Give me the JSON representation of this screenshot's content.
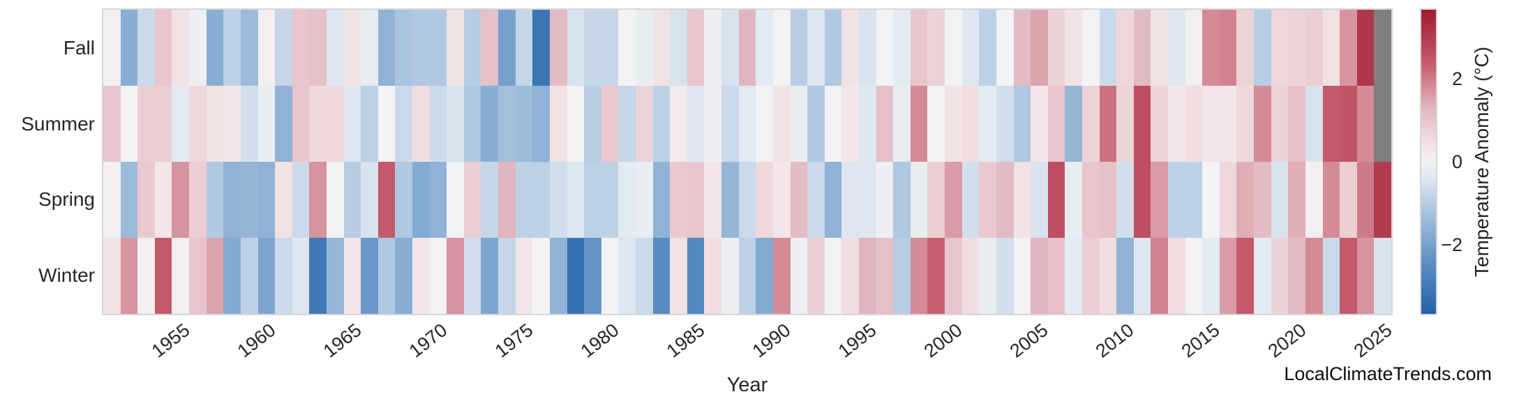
{
  "figure": {
    "background": "#ffffff",
    "text_color": "#262626"
  },
  "xaxis": {
    "label": "Year"
  },
  "watermark": {
    "text": "LocalClimateTrends.com"
  },
  "chart_data": {
    "type": "heatmap",
    "title": "",
    "xlabel": "Year",
    "ylabel": "",
    "rows": [
      "Fall",
      "Summer",
      "Spring",
      "Winter"
    ],
    "years": [
      1951,
      1952,
      1953,
      1954,
      1955,
      1956,
      1957,
      1958,
      1959,
      1960,
      1961,
      1962,
      1963,
      1964,
      1965,
      1966,
      1967,
      1968,
      1969,
      1970,
      1971,
      1972,
      1973,
      1974,
      1975,
      1976,
      1977,
      1978,
      1979,
      1980,
      1981,
      1982,
      1983,
      1984,
      1985,
      1986,
      1987,
      1988,
      1989,
      1990,
      1991,
      1992,
      1993,
      1994,
      1995,
      1996,
      1997,
      1998,
      1999,
      2000,
      2001,
      2002,
      2003,
      2004,
      2005,
      2006,
      2007,
      2008,
      2009,
      2010,
      2011,
      2012,
      2013,
      2014,
      2015,
      2016,
      2017,
      2018,
      2019,
      2020,
      2021,
      2022,
      2023,
      2024,
      2025
    ],
    "x_tick_labels": [
      "1955",
      "1960",
      "1965",
      "1970",
      "1975",
      "1980",
      "1985",
      "1990",
      "1995",
      "2000",
      "2005",
      "2010",
      "2015",
      "2020",
      "2025"
    ],
    "series": [
      {
        "name": "Fall",
        "values": [
          0.1,
          -1.7,
          -0.7,
          1.0,
          0.4,
          -0.1,
          -1.7,
          -0.9,
          -1.4,
          0.1,
          -0.8,
          1.0,
          1.1,
          -0.4,
          0.4,
          -0.2,
          -1.6,
          -1.2,
          -1.1,
          -1.1,
          0.4,
          -1.0,
          1.1,
          -2.0,
          -0.8,
          -3.1,
          1.2,
          -0.5,
          -0.8,
          -0.8,
          0.0,
          -0.2,
          0.4,
          -0.5,
          1.0,
          -0.1,
          -0.5,
          1.3,
          -0.3,
          0.0,
          -1.0,
          -0.4,
          -1.1,
          0.4,
          -0.5,
          0.0,
          -0.3,
          1.0,
          0.7,
          0.0,
          -0.4,
          -0.9,
          0.0,
          1.2,
          1.5,
          0.7,
          0.4,
          0.0,
          -0.7,
          0.6,
          1.2,
          0.4,
          -0.4,
          0.1,
          1.8,
          1.9,
          0.7,
          -1.0,
          0.6,
          0.7,
          0.8,
          0.4,
          1.7,
          3.1,
          null
        ]
      },
      {
        "name": "Summer",
        "values": [
          1.0,
          0.0,
          0.8,
          0.8,
          -0.3,
          0.6,
          0.4,
          0.3,
          -0.6,
          -0.2,
          -1.6,
          1.0,
          0.6,
          0.6,
          -0.4,
          -0.9,
          0.0,
          -0.7,
          0.5,
          -0.7,
          -0.5,
          -1.1,
          -1.7,
          -1.3,
          -1.4,
          -1.6,
          0.4,
          0.0,
          -1.0,
          0.9,
          -0.8,
          0.7,
          -0.9,
          0.2,
          -0.4,
          -0.1,
          -0.7,
          -0.3,
          0.0,
          0.4,
          -0.2,
          -1.1,
          0.0,
          0.3,
          -0.4,
          1.1,
          -0.2,
          1.8,
          0.0,
          0.4,
          0.5,
          -0.3,
          -0.6,
          -1.1,
          0.3,
          1.0,
          -1.5,
          0.7,
          2.1,
          0.7,
          2.6,
          0.7,
          0.3,
          0.5,
          0.3,
          0.3,
          0.6,
          1.8,
          0.7,
          1.1,
          -0.5,
          2.4,
          2.5,
          1.8,
          null
        ]
      },
      {
        "name": "Spring",
        "values": [
          0.1,
          -1.4,
          0.9,
          0.3,
          1.7,
          0.8,
          -1.1,
          -1.6,
          -1.5,
          -1.6,
          0.4,
          -0.7,
          1.7,
          0.0,
          -1.0,
          -0.5,
          2.4,
          -1.1,
          -1.8,
          -1.6,
          0.0,
          0.8,
          -0.8,
          1.3,
          -0.9,
          -0.9,
          -0.6,
          -0.4,
          -0.9,
          -0.9,
          -0.3,
          -0.2,
          -1.6,
          0.9,
          1.0,
          0.3,
          -1.5,
          -0.7,
          0.6,
          0.3,
          1.2,
          -0.7,
          -1.6,
          -0.4,
          -0.4,
          -0.1,
          -1.1,
          -0.2,
          0.8,
          1.6,
          -0.6,
          0.9,
          1.2,
          0.4,
          -0.5,
          2.6,
          -0.2,
          1.0,
          1.1,
          -0.6,
          2.6,
          1.6,
          -0.9,
          -0.9,
          0.0,
          0.6,
          1.4,
          1.2,
          -0.5,
          1.4,
          0.1,
          1.8,
          0.8,
          2.0,
          3.0
        ]
      },
      {
        "name": "Winter",
        "values": [
          0.4,
          1.7,
          0.1,
          2.4,
          0.1,
          1.0,
          1.5,
          -1.8,
          -0.9,
          -1.9,
          -0.7,
          -0.4,
          -3.0,
          -1.5,
          0.3,
          -2.2,
          -1.1,
          -1.7,
          0.3,
          0.0,
          1.7,
          -0.6,
          -1.9,
          -0.8,
          0.3,
          0.0,
          -1.6,
          -3.2,
          -2.3,
          0.0,
          -0.4,
          -0.7,
          -2.5,
          0.4,
          -2.6,
          0.5,
          -0.1,
          -0.9,
          -1.8,
          1.8,
          -0.1,
          0.8,
          0.0,
          0.5,
          1.3,
          1.1,
          -1.0,
          1.8,
          2.3,
          1.0,
          0.5,
          -0.2,
          -0.6,
          0.0,
          1.3,
          1.1,
          -0.3,
          0.8,
          0.5,
          -1.6,
          -0.4,
          1.9,
          0.5,
          0.0,
          -0.3,
          1.6,
          2.4,
          -0.3,
          0.7,
          1.2,
          1.8,
          -0.7,
          2.4,
          1.7,
          -0.5
        ]
      }
    ],
    "vmin": -3.65,
    "vmax": 3.65,
    "value_unit": "°C",
    "nan_color": "#7f7f7f",
    "colormap_name": "diverging-blue-white-red",
    "colormap_stops": [
      [
        -1.0,
        "#2261aa"
      ],
      [
        -0.65,
        "#5f91c4"
      ],
      [
        -0.35,
        "#a4c0dd"
      ],
      [
        -0.12,
        "#dce6f0"
      ],
      [
        0.0,
        "#f3f2f4"
      ],
      [
        0.12,
        "#f1e0e3"
      ],
      [
        0.35,
        "#e2b7bf"
      ],
      [
        0.65,
        "#c55a6b"
      ],
      [
        1.0,
        "#a01a30"
      ]
    ],
    "colorbar": {
      "label": "Temperature Anomaly (°C)",
      "ticks": [
        {
          "label": "2",
          "value": 2
        },
        {
          "label": "0",
          "value": 0
        },
        {
          "label": "−2",
          "value": -2
        }
      ],
      "position": "right"
    },
    "grid": false,
    "legend_position": "none"
  }
}
